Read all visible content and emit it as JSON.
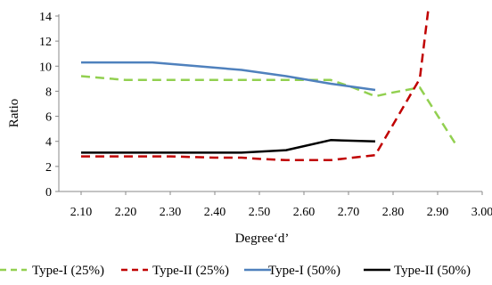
{
  "chart_data": {
    "type": "line",
    "title": "",
    "xlabel": "Degree‘d’",
    "ylabel": "Ratio",
    "xlim": [
      2.05,
      3.0
    ],
    "ylim": [
      0,
      14
    ],
    "xticks": [
      "2.10",
      "2.20",
      "2.30",
      "2.40",
      "2.50",
      "2.60",
      "2.70",
      "2.80",
      "2.90",
      "3.00"
    ],
    "yticks": [
      "0",
      "2",
      "4",
      "6",
      "8",
      "10",
      "12",
      "14"
    ],
    "grid": false,
    "legend_position": "bottom",
    "series": [
      {
        "name": "Type-I (25%)",
        "color": "#92d050",
        "dash": "dashed",
        "x": [
          2.1,
          2.2,
          2.3,
          2.4,
          2.5,
          2.6,
          2.66,
          2.71,
          2.76,
          2.8,
          2.86,
          2.94
        ],
        "y": [
          9.2,
          8.9,
          8.9,
          8.9,
          8.9,
          8.9,
          8.9,
          8.3,
          7.6,
          7.9,
          8.3,
          3.8
        ]
      },
      {
        "name": "Type-II (25%)",
        "color": "#c00000",
        "dash": "dashed",
        "x": [
          2.1,
          2.2,
          2.3,
          2.4,
          2.46,
          2.5,
          2.56,
          2.66,
          2.76,
          2.86,
          2.88
        ],
        "y": [
          2.8,
          2.8,
          2.8,
          2.7,
          2.7,
          2.6,
          2.5,
          2.5,
          2.9,
          9.0,
          14.8
        ]
      },
      {
        "name": "Type-I (50%)",
        "color": "#4f81bd",
        "dash": "solid",
        "x": [
          2.1,
          2.2,
          2.26,
          2.36,
          2.46,
          2.56,
          2.66,
          2.76
        ],
        "y": [
          10.3,
          10.3,
          10.3,
          10.0,
          9.7,
          9.2,
          8.6,
          8.1
        ]
      },
      {
        "name": "Type-II (50%)",
        "color": "#000000",
        "dash": "solid",
        "x": [
          2.1,
          2.2,
          2.3,
          2.4,
          2.46,
          2.56,
          2.66,
          2.76
        ],
        "y": [
          3.1,
          3.1,
          3.1,
          3.1,
          3.1,
          3.3,
          4.1,
          4.0
        ]
      }
    ]
  }
}
